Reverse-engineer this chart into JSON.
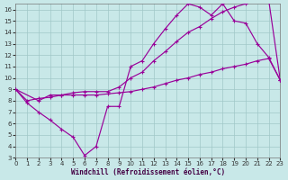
{
  "xlabel": "Windchill (Refroidissement éolien,°C)",
  "bg_color": "#c8e8e8",
  "line_color": "#990099",
  "grid_color": "#a0c8c8",
  "xlim": [
    0,
    23
  ],
  "ylim": [
    3,
    16.5
  ],
  "xticks": [
    0,
    1,
    2,
    3,
    4,
    5,
    6,
    7,
    8,
    9,
    10,
    11,
    12,
    13,
    14,
    15,
    16,
    17,
    18,
    19,
    20,
    21,
    22,
    23
  ],
  "yticks": [
    3,
    4,
    5,
    6,
    7,
    8,
    9,
    10,
    11,
    12,
    13,
    14,
    15,
    16
  ],
  "line1_x": [
    0,
    1,
    2,
    3,
    4,
    5,
    6,
    7,
    8,
    9,
    10,
    11,
    12,
    13,
    14,
    15,
    16,
    17,
    18,
    19,
    20,
    21,
    22,
    23
  ],
  "line1_y": [
    9.0,
    7.8,
    7.0,
    6.3,
    5.5,
    4.8,
    3.2,
    4.0,
    7.5,
    7.5,
    11.0,
    11.5,
    13.0,
    14.3,
    15.5,
    16.5,
    16.2,
    15.5,
    16.5,
    15.0,
    14.8,
    13.0,
    11.8,
    9.8
  ],
  "line2_x": [
    0,
    2,
    3,
    4,
    5,
    6,
    7,
    8,
    9,
    10,
    11,
    12,
    13,
    14,
    15,
    16,
    17,
    18,
    19,
    20,
    21,
    22,
    23
  ],
  "line2_y": [
    9.0,
    8.0,
    8.5,
    8.5,
    8.7,
    8.8,
    8.8,
    8.8,
    9.2,
    10.0,
    10.5,
    11.5,
    12.3,
    13.2,
    14.0,
    14.5,
    15.2,
    15.8,
    16.2,
    16.5,
    16.8,
    16.8,
    9.8
  ],
  "line3_x": [
    0,
    1,
    2,
    3,
    4,
    5,
    6,
    7,
    8,
    9,
    10,
    11,
    12,
    13,
    14,
    15,
    16,
    17,
    18,
    19,
    20,
    21,
    22,
    23
  ],
  "line3_y": [
    9.0,
    8.0,
    8.2,
    8.3,
    8.5,
    8.5,
    8.5,
    8.5,
    8.6,
    8.7,
    8.8,
    9.0,
    9.2,
    9.5,
    9.8,
    10.0,
    10.3,
    10.5,
    10.8,
    11.0,
    11.2,
    11.5,
    11.7,
    9.8
  ],
  "tick_fontsize": 5.0,
  "xlabel_fontsize": 5.5,
  "lw": 0.85,
  "marker_size": 3.0,
  "marker_lw": 0.8
}
